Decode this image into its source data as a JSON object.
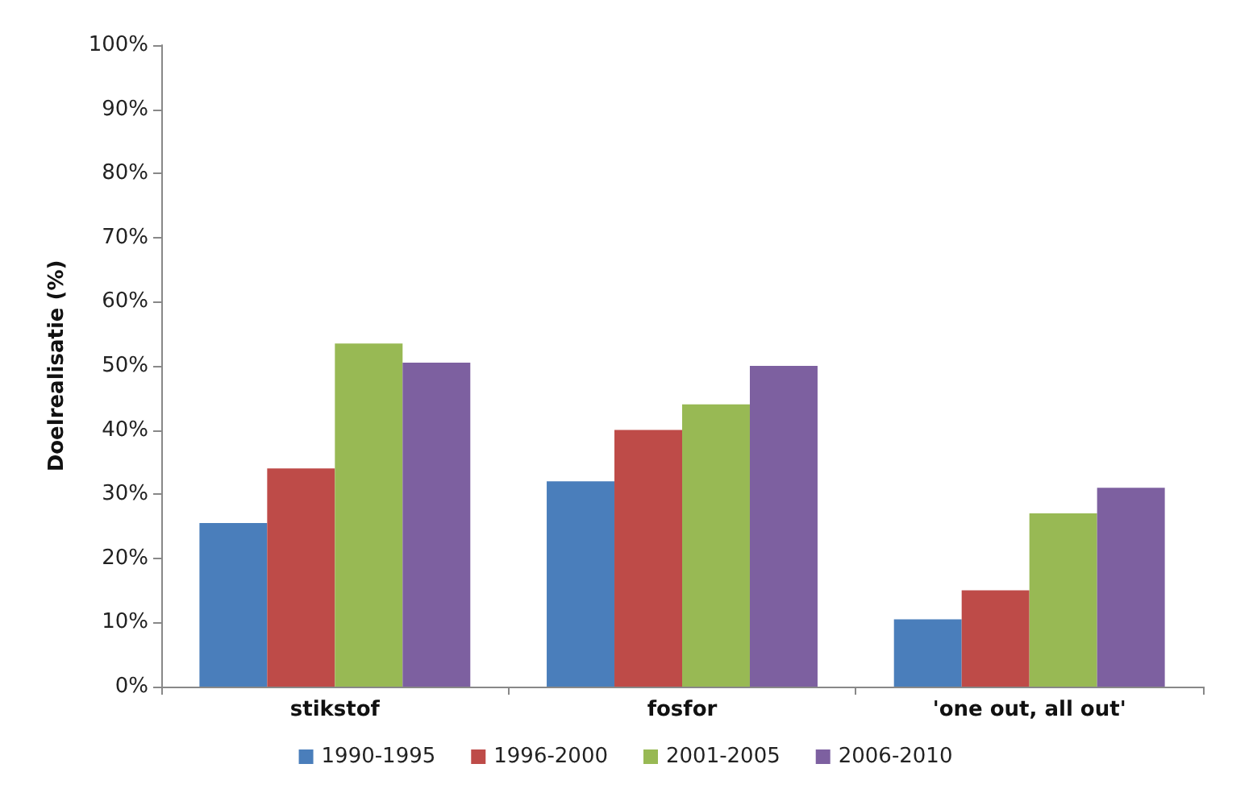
{
  "chart_data": {
    "type": "bar",
    "ylabel": "Doelrealisatie (%)",
    "categories": [
      "stikstof",
      "fosfor",
      "'one out, all out'"
    ],
    "series": [
      {
        "name": "1990-1995",
        "color": "#4a7ebb",
        "values": [
          25.5,
          32,
          10.5
        ]
      },
      {
        "name": "1996-2000",
        "color": "#be4b48",
        "values": [
          34,
          40,
          15
        ]
      },
      {
        "name": "2001-2005",
        "color": "#98b954",
        "values": [
          53.5,
          44,
          27
        ]
      },
      {
        "name": "2006-2010",
        "color": "#7d60a0",
        "values": [
          50.5,
          50,
          31
        ]
      }
    ],
    "ylim": [
      0,
      100
    ],
    "yticks": [
      {
        "value": 0,
        "label": "0%"
      },
      {
        "value": 10,
        "label": "10%"
      },
      {
        "value": 20,
        "label": "20%"
      },
      {
        "value": 30,
        "label": "30%"
      },
      {
        "value": 40,
        "label": "40%"
      },
      {
        "value": 50,
        "label": "50%"
      },
      {
        "value": 60,
        "label": "60%"
      },
      {
        "value": 70,
        "label": "70%"
      },
      {
        "value": 80,
        "label": "80%"
      },
      {
        "value": 90,
        "label": "90%"
      },
      {
        "value": 100,
        "label": "100%"
      }
    ],
    "grid": false,
    "legend": "bottom"
  }
}
